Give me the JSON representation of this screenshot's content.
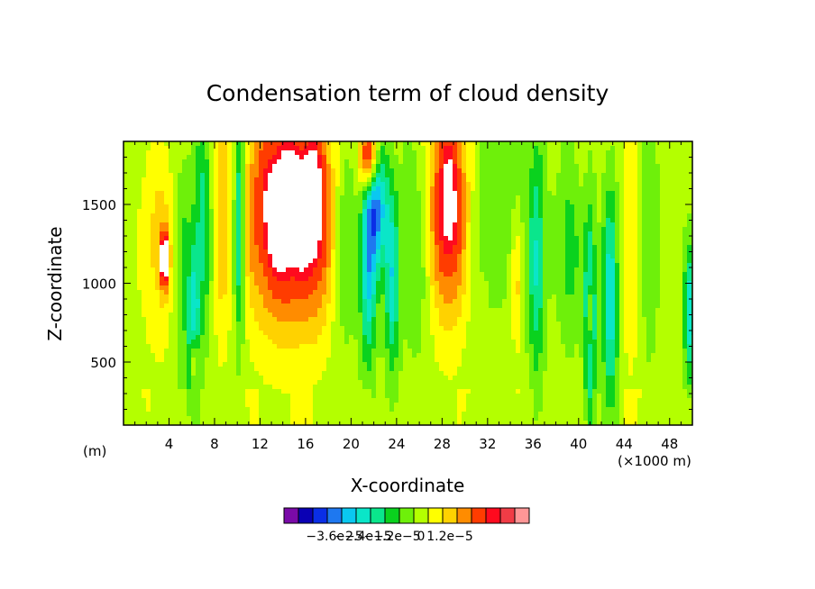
{
  "chart_data": {
    "type": "heatmap",
    "title": "Condensation term of cloud density",
    "xlabel": "X-coordinate",
    "ylabel": "Z-coordinate",
    "x_unit_left": "(m)",
    "x_unit_right": "(×1000 m)",
    "xlim": [
      0,
      50
    ],
    "ylim": [
      100,
      1900
    ],
    "x_ticks": [
      4,
      8,
      12,
      16,
      20,
      24,
      28,
      32,
      36,
      40,
      44,
      48
    ],
    "y_ticks": [
      500,
      1000,
      1500
    ],
    "x_tick_labels": [
      "4",
      "8",
      "12",
      "16",
      "20",
      "24",
      "28",
      "32",
      "36",
      "40",
      "44",
      "48"
    ],
    "y_tick_labels": [
      "500",
      "1000",
      "1500"
    ],
    "colorbar": {
      "colors": [
        "#7a0aa8",
        "#0a00b4",
        "#0a2ee6",
        "#1e78f0",
        "#0ac8f0",
        "#0ae6c8",
        "#0ae68c",
        "#0ad21e",
        "#6ef00a",
        "#b4ff00",
        "#ffff00",
        "#ffd200",
        "#ff8c00",
        "#ff3c00",
        "#ff0a1e",
        "#f03c46",
        "#ff9696"
      ],
      "labels": [
        "−3.6e−5",
        "−2.4e−5",
        "−1.2e−5",
        "0",
        "1.2e−5"
      ],
      "label_values": [
        -3.6e-05,
        -2.4e-05,
        -1.2e-05,
        0,
        1.2e-05
      ]
    },
    "background_level": 0,
    "features": [
      {
        "x": 3.2,
        "z": 1250,
        "sx": 1.1,
        "sz": 450,
        "v": 1.2e-05
      },
      {
        "x": 3.6,
        "z": 1150,
        "sx": 0.25,
        "sz": 120,
        "v": 4e-05
      },
      {
        "x": 5.2,
        "z": 1100,
        "sx": 0.6,
        "sz": 500,
        "v": -1.2e-05
      },
      {
        "x": 6.2,
        "z": 700,
        "sx": 0.35,
        "sz": 400,
        "v": -2.4e-05
      },
      {
        "x": 6.3,
        "z": 500,
        "sx": 0.15,
        "sz": 120,
        "v": 4e-05
      },
      {
        "x": 7.0,
        "z": 1400,
        "sx": 0.5,
        "sz": 500,
        "v": -1.8e-05
      },
      {
        "x": 8.6,
        "z": 1500,
        "sx": 0.5,
        "sz": 600,
        "v": 1.2e-05
      },
      {
        "x": 10.2,
        "z": 1400,
        "sx": 0.35,
        "sz": 500,
        "v": -3e-05
      },
      {
        "x": 14.2,
        "z": 1450,
        "sx": 2.4,
        "sz": 500,
        "v": 4e-05
      },
      {
        "x": 17.0,
        "z": 1500,
        "sx": 0.9,
        "sz": 500,
        "v": 1.6e-05
      },
      {
        "x": 19.5,
        "z": 1300,
        "sx": 0.7,
        "sz": 500,
        "v": -1e-05
      },
      {
        "x": 21.5,
        "z": 1000,
        "sx": 0.5,
        "sz": 400,
        "v": -2.4e-05
      },
      {
        "x": 22.2,
        "z": 1500,
        "sx": 0.7,
        "sz": 300,
        "v": -3.6e-05
      },
      {
        "x": 21.6,
        "z": 1800,
        "sx": 0.6,
        "sz": 150,
        "v": 4e-05
      },
      {
        "x": 23.6,
        "z": 1000,
        "sx": 0.45,
        "sz": 400,
        "v": -2.4e-05
      },
      {
        "x": 25.8,
        "z": 1200,
        "sx": 0.9,
        "sz": 500,
        "v": -8e-06
      },
      {
        "x": 28.6,
        "z": 1500,
        "sx": 1.3,
        "sz": 500,
        "v": 4e-05
      },
      {
        "x": 31.5,
        "z": 1500,
        "sx": 3.5,
        "sz": 500,
        "v": -8e-06
      },
      {
        "x": 34.6,
        "z": 1000,
        "sx": 0.4,
        "sz": 300,
        "v": 1.2e-05
      },
      {
        "x": 36.3,
        "z": 1100,
        "sx": 0.5,
        "sz": 500,
        "v": -2e-05
      },
      {
        "x": 39.2,
        "z": 1200,
        "sx": 0.7,
        "sz": 400,
        "v": -1.2e-05
      },
      {
        "x": 41.0,
        "z": 800,
        "sx": 0.35,
        "sz": 450,
        "v": -3e-05
      },
      {
        "x": 40.9,
        "z": 800,
        "sx": 0.12,
        "sz": 150,
        "v": 4e-05
      },
      {
        "x": 42.8,
        "z": 900,
        "sx": 0.5,
        "sz": 500,
        "v": -2.6e-05
      },
      {
        "x": 44.6,
        "z": 1300,
        "sx": 0.7,
        "sz": 600,
        "v": 9e-06
      },
      {
        "x": 46.2,
        "z": 1400,
        "sx": 0.6,
        "sz": 600,
        "v": -1e-05
      },
      {
        "x": 49.7,
        "z": 800,
        "sx": 0.3,
        "sz": 300,
        "v": -2.6e-05
      }
    ]
  }
}
